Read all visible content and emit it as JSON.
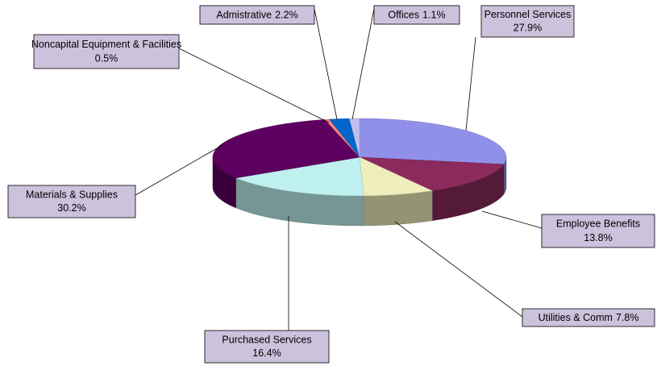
{
  "chart_data": {
    "type": "pie",
    "categories": [
      "Personnel Services",
      "Employee Benefits",
      "Utilities & Comm",
      "Purchased Services",
      "Materials & Supplies",
      "Noncapital Equipment & Facilities",
      "Admistrative",
      "Offices"
    ],
    "values": [
      27.9,
      13.8,
      7.8,
      16.4,
      30.2,
      0.5,
      2.2,
      1.1
    ],
    "value_labels": [
      "27.9%",
      "13.8%",
      "7.8%",
      "16.4%",
      "30.2%",
      "0.5%",
      "2.2%",
      "1.1%"
    ],
    "colors": [
      "#9090ea",
      "#8b2a5c",
      "#eeeebc",
      "#bff0f0",
      "#5e0060",
      "#ff8080",
      "#0066cc",
      "#c0c0f0"
    ]
  }
}
